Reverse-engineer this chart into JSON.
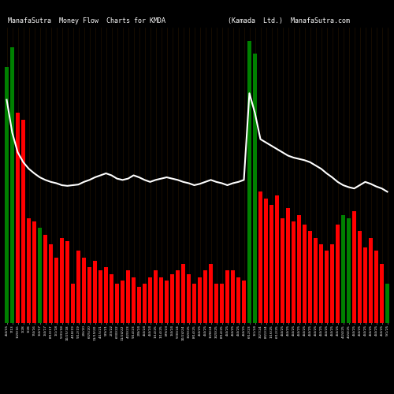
{
  "title_left": "ManafaSutra  Money Flow  Charts for KMDA",
  "title_right": "(Kamada  Ltd.)  ManafaSutra.com",
  "background_color": "#000000",
  "bar_colors": [
    "green",
    "green",
    "red",
    "red",
    "red",
    "red",
    "green",
    "red",
    "red",
    "red",
    "red",
    "red",
    "red",
    "red",
    "red",
    "red",
    "red",
    "red",
    "red",
    "red",
    "red",
    "red",
    "red",
    "red",
    "red",
    "red",
    "red",
    "red",
    "red",
    "red",
    "red",
    "red",
    "red",
    "red",
    "red",
    "red",
    "red",
    "red",
    "red",
    "red",
    "red",
    "red",
    "red",
    "red",
    "green",
    "green",
    "red",
    "red",
    "red",
    "red",
    "red",
    "red",
    "red",
    "red",
    "red",
    "red",
    "red",
    "red",
    "red",
    "red",
    "red",
    "green",
    "green",
    "red",
    "red",
    "red",
    "red",
    "red",
    "red",
    "green"
  ],
  "bar_heights": [
    390,
    420,
    320,
    310,
    160,
    155,
    145,
    135,
    120,
    100,
    130,
    125,
    60,
    110,
    100,
    85,
    95,
    80,
    85,
    75,
    60,
    65,
    80,
    70,
    55,
    60,
    70,
    80,
    70,
    65,
    75,
    80,
    90,
    75,
    60,
    70,
    80,
    90,
    60,
    60,
    80,
    80,
    70,
    65,
    430,
    410,
    200,
    190,
    180,
    195,
    160,
    175,
    155,
    165,
    150,
    140,
    130,
    120,
    110,
    120,
    150,
    165,
    160,
    170,
    140,
    115,
    130,
    110,
    90,
    60
  ],
  "line_values": [
    340,
    290,
    260,
    245,
    235,
    228,
    222,
    218,
    215,
    213,
    210,
    209,
    210,
    211,
    215,
    218,
    222,
    225,
    228,
    225,
    220,
    218,
    220,
    225,
    222,
    218,
    215,
    218,
    220,
    222,
    220,
    218,
    215,
    213,
    210,
    212,
    215,
    218,
    215,
    213,
    210,
    213,
    215,
    218,
    350,
    320,
    280,
    275,
    270,
    265,
    260,
    255,
    252,
    250,
    248,
    245,
    240,
    235,
    228,
    222,
    215,
    210,
    207,
    205,
    210,
    215,
    212,
    208,
    205,
    200
  ],
  "x_labels": [
    "4/4/15",
    "7/13",
    "1/20/16",
    "1/28",
    "1/28",
    "7/4/16",
    "1/4/17",
    "1/4/17",
    "8/10/17",
    "1/1/18",
    "5/31/18",
    "10/25/18",
    "4/18/19",
    "9/12/19",
    "2/6/20",
    "6/25/20",
    "11/19/20",
    "4/15/21",
    "9/9/21",
    "2/3/22",
    "6/30/22",
    "11/24/22",
    "4/20/23",
    "9/14/23",
    "2/8/24",
    "4/4/24",
    "4/4/24",
    "1/14/25",
    "1/14/25",
    "8/9/23",
    "1/4/24",
    "5/30/24",
    "10/24/24",
    "3/20/25",
    "8/14/25",
    "4/4/25",
    "4/4/25",
    "1/28/24",
    "3/20/25",
    "8/14/25",
    "4/4/25",
    "4/4/25",
    "4/4/25",
    "4/4/25",
    "6/12/23",
    "1/1/24",
    "3/27/24",
    "8/22/24",
    "1/16/25",
    "6/12/25",
    "4/4/25",
    "4/4/25",
    "4/4/25",
    "4/4/25",
    "4/4/25",
    "4/4/25",
    "4/4/25",
    "4/4/25",
    "4/4/25",
    "4/4/25",
    "4/4/25",
    "4/24/25",
    "4/24/25",
    "4/4/25",
    "4/4/25",
    "4/4/25",
    "4/4/25",
    "4/4/25",
    "4/4/25",
    "5/1/25"
  ],
  "ylim": [
    0,
    450
  ],
  "line_color": "#ffffff",
  "line_width": 1.5,
  "figsize": [
    5.0,
    5.0
  ],
  "dpi": 100
}
